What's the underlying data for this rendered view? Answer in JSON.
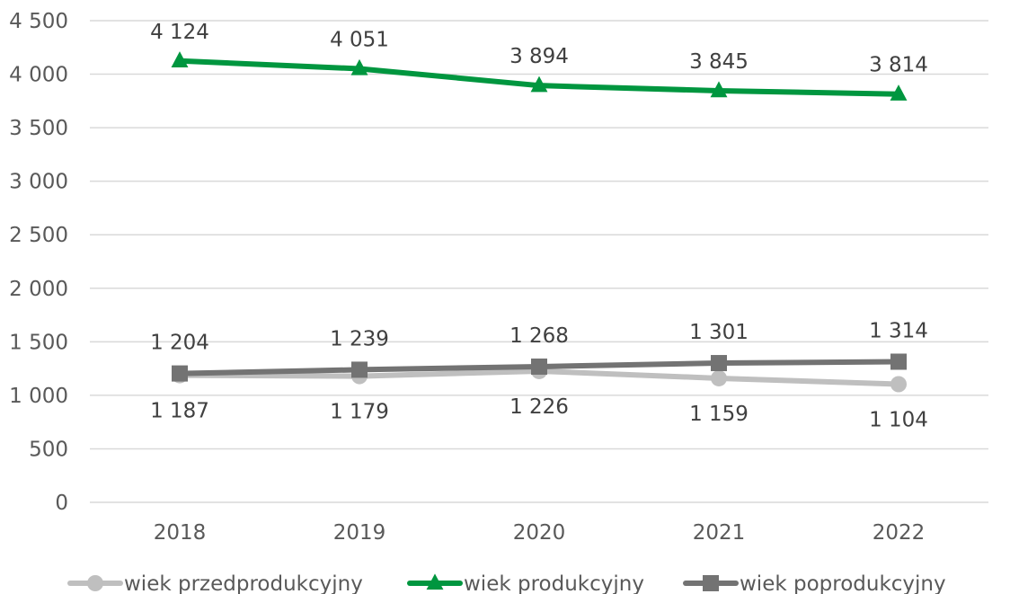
{
  "chart_data": {
    "type": "line",
    "categories": [
      "2018",
      "2019",
      "2020",
      "2021",
      "2022"
    ],
    "ylim": [
      0,
      4500
    ],
    "yticks": [
      0,
      500,
      1000,
      1500,
      2000,
      2500,
      3000,
      3500,
      4000,
      4500
    ],
    "ytick_labels": [
      "0",
      "500",
      "1 000",
      "1 500",
      "2 000",
      "2 500",
      "3 000",
      "3 500",
      "4 000",
      "4 500"
    ],
    "grid": true,
    "legend_position": "bottom",
    "series": [
      {
        "name": "wiek przedprodukcyjny",
        "values": [
          1187,
          1179,
          1226,
          1159,
          1104
        ],
        "labels": [
          "1 187",
          "1 179",
          "1 226",
          "1 159",
          "1 104"
        ],
        "color": "#bfbfbf",
        "marker": "circle",
        "label_position": "below"
      },
      {
        "name": "wiek produkcyjny",
        "values": [
          4124,
          4051,
          3894,
          3845,
          3814
        ],
        "labels": [
          "4 124",
          "4 051",
          "3 894",
          "3 845",
          "3 814"
        ],
        "color": "#00963f",
        "marker": "triangle",
        "label_position": "above"
      },
      {
        "name": "wiek poprodukcyjny",
        "values": [
          1204,
          1239,
          1268,
          1301,
          1314
        ],
        "labels": [
          "1 204",
          "1 239",
          "1 268",
          "1 301",
          "1 314"
        ],
        "color": "#737373",
        "marker": "square",
        "label_position": "above"
      }
    ]
  }
}
